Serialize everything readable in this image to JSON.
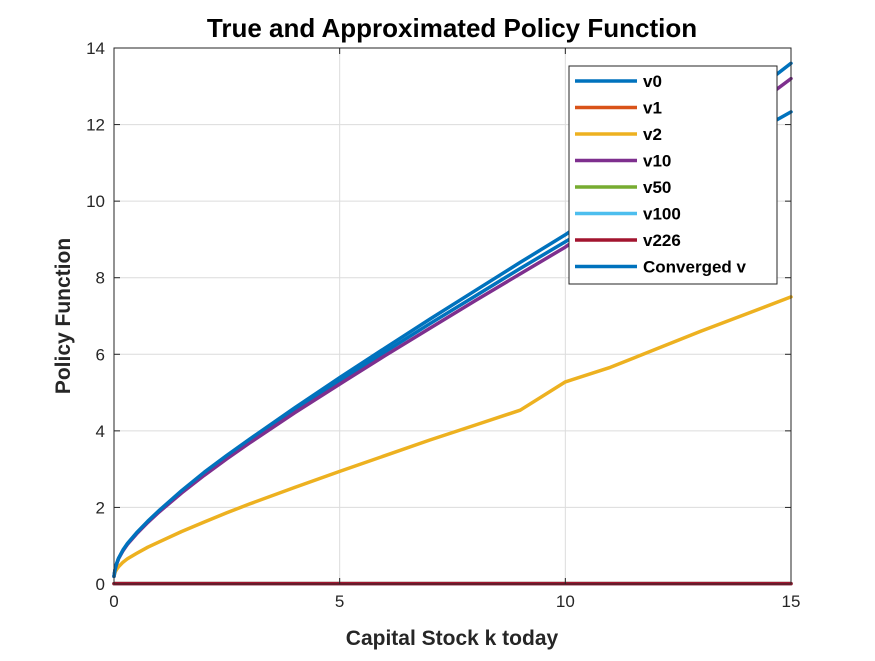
{
  "chart_data": {
    "type": "line",
    "title": "True and Approximated Policy Function",
    "xlabel": "Capital Stock k today",
    "ylabel": "Policy Function",
    "xlim": [
      0,
      15
    ],
    "ylim": [
      0,
      14
    ],
    "xticks": [
      "0",
      "5",
      "10",
      "15"
    ],
    "yticks": [
      "0",
      "2",
      "4",
      "6",
      "8",
      "10",
      "12",
      "14"
    ],
    "grid": true,
    "legend_position": "top-right",
    "x": [
      0,
      0.02,
      0.05,
      0.1,
      0.2,
      0.3,
      0.5,
      0.75,
      1,
      1.5,
      2,
      2.5,
      3,
      4,
      5,
      6,
      7,
      8,
      9,
      10,
      11,
      12,
      13,
      14,
      15
    ],
    "series": [
      {
        "name": "v0",
        "color": "#0072BD",
        "values": [
          0.2,
          0.35,
          0.5,
          0.66,
          0.88,
          1.05,
          1.32,
          1.62,
          1.89,
          2.4,
          2.87,
          3.3,
          3.72,
          4.53,
          5.3,
          6.06,
          6.8,
          7.52,
          8.24,
          8.94,
          9.63,
          10.32,
          11,
          11.67,
          12.33
        ]
      },
      {
        "name": "v1",
        "color": "#D95319",
        "values": [
          0.01,
          0.01,
          0.01,
          0.01,
          0.01,
          0.01,
          0.01,
          0.01,
          0.01,
          0.01,
          0.01,
          0.01,
          0.01,
          0.01,
          0.01,
          0.01,
          0.01,
          0.01,
          0.01,
          0.01,
          0.01,
          0.01,
          0.01,
          0.01,
          0.01
        ]
      },
      {
        "name": "v2",
        "color": "#EDB120",
        "values": [
          0.2,
          0.3,
          0.37,
          0.45,
          0.57,
          0.66,
          0.8,
          0.96,
          1.1,
          1.37,
          1.62,
          1.86,
          2.09,
          2.52,
          2.94,
          3.35,
          3.76,
          4.15,
          4.54,
          5.28,
          5.66,
          6.13,
          6.6,
          7.05,
          7.5
        ]
      },
      {
        "name": "v10",
        "color": "#7E2F8E",
        "values": [
          0.2,
          0.35,
          0.5,
          0.66,
          0.87,
          1.04,
          1.31,
          1.61,
          1.88,
          2.38,
          2.84,
          3.27,
          3.68,
          4.47,
          5.22,
          5.96,
          6.68,
          7.4,
          8.1,
          8.8,
          9.62,
          10.53,
          11.43,
          12.32,
          13.2
        ]
      },
      {
        "name": "v50",
        "color": "#77AC30",
        "values": [
          0.01,
          0.01,
          0.01,
          0.01,
          0.01,
          0.01,
          0.01,
          0.01,
          0.01,
          0.01,
          0.01,
          0.01,
          0.01,
          0.01,
          0.01,
          0.01,
          0.01,
          0.01,
          0.01,
          0.01,
          0.01,
          0.01,
          0.01,
          0.01,
          0.01
        ]
      },
      {
        "name": "v100",
        "color": "#4DBEEE",
        "values": [
          0.01,
          0.01,
          0.01,
          0.01,
          0.01,
          0.01,
          0.01,
          0.01,
          0.01,
          0.01,
          0.01,
          0.01,
          0.01,
          0.01,
          0.01,
          0.01,
          0.01,
          0.01,
          0.01,
          0.01,
          0.01,
          0.01,
          0.01,
          0.01,
          0.01
        ]
      },
      {
        "name": "v226",
        "color": "#A2142F",
        "values": [
          0.01,
          0.01,
          0.01,
          0.01,
          0.01,
          0.01,
          0.01,
          0.01,
          0.01,
          0.01,
          0.01,
          0.01,
          0.01,
          0.01,
          0.01,
          0.01,
          0.01,
          0.01,
          0.01,
          0.01,
          0.01,
          0.01,
          0.01,
          0.01,
          0.01
        ]
      },
      {
        "name": "Converged v",
        "color": "#0072BD",
        "values": [
          0.2,
          0.36,
          0.51,
          0.67,
          0.89,
          1.06,
          1.34,
          1.64,
          1.92,
          2.44,
          2.92,
          3.36,
          3.78,
          4.6,
          5.39,
          6.16,
          6.92,
          7.66,
          8.4,
          9.12,
          9.95,
          10.87,
          11.78,
          12.69,
          13.6
        ]
      }
    ]
  }
}
